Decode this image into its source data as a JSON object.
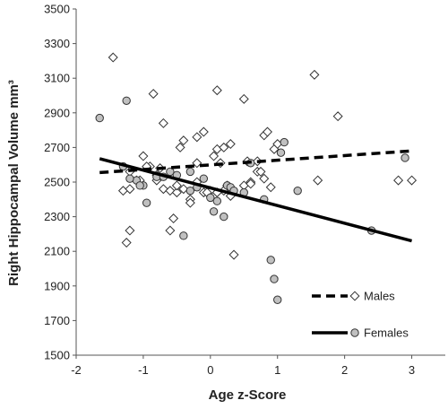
{
  "chart_data": {
    "type": "scatter",
    "title": "",
    "xlabel": "Age z-Score",
    "ylabel": "Right Hippocampal Volume mm³",
    "xlim": [
      -2,
      3.5
    ],
    "ylim": [
      1500,
      3500
    ],
    "xticks": [
      -2,
      -1,
      0,
      1,
      2,
      3
    ],
    "yticks": [
      1500,
      1700,
      1900,
      2100,
      2300,
      2500,
      2700,
      2900,
      3100,
      3300,
      3500
    ],
    "grid": false,
    "legend_position": "bottom-right",
    "series": [
      {
        "name": "Males",
        "marker": "diamond",
        "marker_color": "#ffffff",
        "line_style": "dashed",
        "trend": [
          [
            -1.65,
            2555
          ],
          [
            3.0,
            2680
          ]
        ],
        "points": [
          [
            -1.3,
            2450
          ],
          [
            -1.2,
            2460
          ],
          [
            -1.1,
            2510
          ],
          [
            -1.05,
            2510
          ],
          [
            -0.9,
            2590
          ],
          [
            -0.8,
            2510
          ],
          [
            -0.7,
            2460
          ],
          [
            -0.6,
            2450
          ],
          [
            -0.5,
            2440
          ],
          [
            -0.4,
            2460
          ],
          [
            -0.3,
            2400
          ],
          [
            -0.2,
            2500
          ],
          [
            -0.1,
            2440
          ],
          [
            0.0,
            2450
          ],
          [
            0.1,
            2440
          ],
          [
            0.2,
            2450
          ],
          [
            0.3,
            2420
          ],
          [
            0.5,
            2480
          ],
          [
            0.6,
            2500
          ],
          [
            0.7,
            2560
          ],
          [
            0.8,
            2520
          ],
          [
            0.9,
            2470
          ],
          [
            -1.45,
            3220
          ],
          [
            -1.25,
            2150
          ],
          [
            -1.2,
            2220
          ],
          [
            -1.2,
            2560
          ],
          [
            -1.0,
            2650
          ],
          [
            -0.95,
            2590
          ],
          [
            -0.85,
            3010
          ],
          [
            -0.8,
            2540
          ],
          [
            -0.75,
            2580
          ],
          [
            -0.7,
            2840
          ],
          [
            -0.5,
            2480
          ],
          [
            -0.45,
            2700
          ],
          [
            -0.4,
            2740
          ],
          [
            -0.3,
            2380
          ],
          [
            -0.2,
            2610
          ],
          [
            -0.2,
            2760
          ],
          [
            -0.1,
            2790
          ],
          [
            -0.05,
            2440
          ],
          [
            0.05,
            2650
          ],
          [
            0.1,
            2690
          ],
          [
            0.1,
            3030
          ],
          [
            0.15,
            2610
          ],
          [
            0.2,
            2700
          ],
          [
            0.25,
            2480
          ],
          [
            0.3,
            2720
          ],
          [
            0.35,
            2080
          ],
          [
            0.5,
            2980
          ],
          [
            0.55,
            2620
          ],
          [
            0.6,
            2490
          ],
          [
            0.7,
            2620
          ],
          [
            0.75,
            2560
          ],
          [
            0.8,
            2770
          ],
          [
            0.85,
            2790
          ],
          [
            0.95,
            2690
          ],
          [
            1.0,
            2720
          ],
          [
            1.55,
            3120
          ],
          [
            1.6,
            2510
          ],
          [
            1.9,
            2880
          ],
          [
            2.8,
            2510
          ],
          [
            3.0,
            2510
          ],
          [
            -0.55,
            2290
          ],
          [
            -0.6,
            2220
          ]
        ]
      },
      {
        "name": "Females",
        "marker": "circle",
        "marker_color": "#c0c0c0",
        "line_style": "solid",
        "trend": [
          [
            -1.65,
            2635
          ],
          [
            3.0,
            2160
          ]
        ],
        "points": [
          [
            -1.65,
            2870
          ],
          [
            -1.3,
            2590
          ],
          [
            -1.25,
            2970
          ],
          [
            -1.1,
            2510
          ],
          [
            -1.0,
            2480
          ],
          [
            -0.95,
            2380
          ],
          [
            -0.8,
            2530
          ],
          [
            -0.7,
            2530
          ],
          [
            -0.6,
            2560
          ],
          [
            -0.5,
            2540
          ],
          [
            -0.4,
            2190
          ],
          [
            -0.3,
            2560
          ],
          [
            -0.3,
            2450
          ],
          [
            -0.2,
            2470
          ],
          [
            -0.1,
            2520
          ],
          [
            0.0,
            2410
          ],
          [
            0.05,
            2330
          ],
          [
            0.1,
            2390
          ],
          [
            0.2,
            2300
          ],
          [
            0.25,
            2480
          ],
          [
            0.3,
            2470
          ],
          [
            0.35,
            2450
          ],
          [
            0.5,
            2440
          ],
          [
            0.6,
            2610
          ],
          [
            0.8,
            2400
          ],
          [
            0.9,
            2050
          ],
          [
            0.95,
            1940
          ],
          [
            1.0,
            1820
          ],
          [
            1.05,
            2670
          ],
          [
            1.1,
            2730
          ],
          [
            1.3,
            2450
          ],
          [
            2.4,
            2220
          ],
          [
            2.9,
            2640
          ],
          [
            -1.2,
            2520
          ],
          [
            -1.05,
            2480
          ]
        ]
      }
    ]
  }
}
